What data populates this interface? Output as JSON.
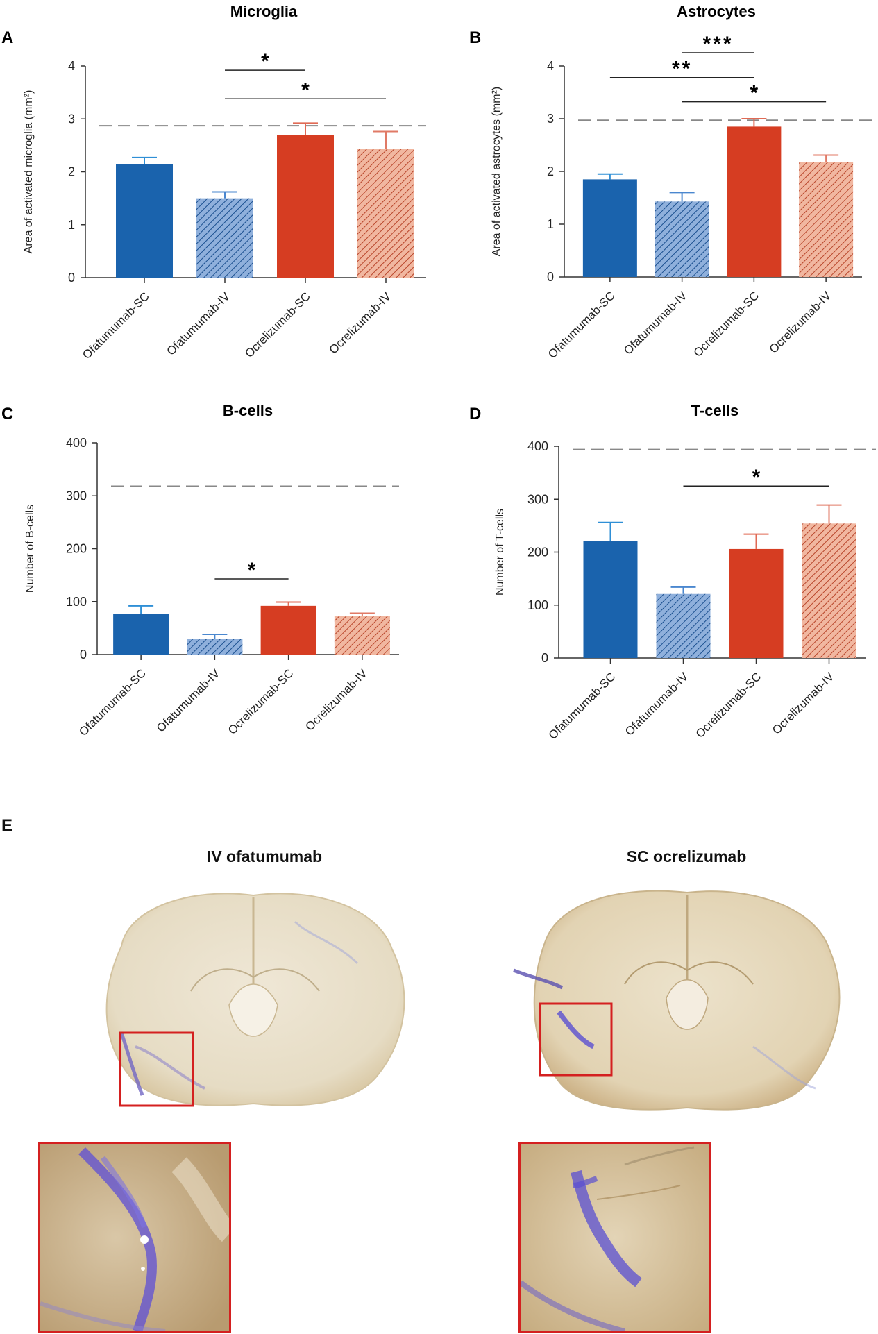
{
  "colors": {
    "ofa": "#1a63ad",
    "ofa_hatch_bg": "#8fb0dc",
    "ocr": "#d63d22",
    "ocr_hatch_bg": "#f1b7a0",
    "reference_line": "#888888",
    "highlight_box": "#d42020"
  },
  "chart_data": [
    {
      "panel": "A",
      "type": "bar",
      "title": "Microglia",
      "ylabel": "Area of activated microglia (mm²)",
      "ylim": [
        0,
        4
      ],
      "yticks": [
        0,
        1,
        2,
        3,
        4
      ],
      "yticks_labels": [
        "0",
        "1",
        "2",
        "3",
        "4"
      ],
      "categories": [
        "Ofatumumab-SC",
        "Ofatumumab-IV",
        "Ocrelizumab-SC",
        "Ocrelizumab-IV"
      ],
      "values": [
        2.15,
        1.5,
        2.7,
        2.43
      ],
      "errors": [
        0.12,
        0.12,
        0.22,
        0.33
      ],
      "reference_value": 2.87,
      "significance": [
        {
          "from": 1,
          "to": 2,
          "level": 3.92,
          "label": "*"
        },
        {
          "from": 1,
          "to": 3,
          "level": 3.38,
          "label": "*"
        }
      ]
    },
    {
      "panel": "B",
      "type": "bar",
      "title": "Astrocytes",
      "ylabel": "Area of activated astrocytes (mm²)",
      "ylim": [
        0,
        4
      ],
      "yticks": [
        0,
        1,
        2,
        3,
        4
      ],
      "yticks_labels": [
        "0",
        "1",
        "2",
        "3",
        "4"
      ],
      "categories": [
        "Ofatumumab-SC",
        "Ofatumumab-IV",
        "Ocrelizumab-SC",
        "Ocrelizumab-IV"
      ],
      "values": [
        1.85,
        1.43,
        2.85,
        2.18
      ],
      "errors": [
        0.1,
        0.17,
        0.15,
        0.13
      ],
      "reference_value": 2.97,
      "significance": [
        {
          "from": 1,
          "to": 2,
          "level": 4.25,
          "label": "***"
        },
        {
          "from": 0,
          "to": 2,
          "level": 3.78,
          "label": "**"
        },
        {
          "from": 1,
          "to": 3,
          "level": 3.32,
          "label": "*"
        }
      ]
    },
    {
      "panel": "C",
      "type": "bar",
      "title": "B-cells",
      "ylabel": "Number of B-cells",
      "ylim": [
        0,
        400
      ],
      "yticks": [
        0,
        100,
        200,
        300,
        400
      ],
      "yticks_labels": [
        "0",
        "100",
        "200",
        "300",
        "400"
      ],
      "categories": [
        "Ofatumumab-SC",
        "Ofatumumab-IV",
        "Ocrelizumab-SC",
        "Ocrelizumab-IV"
      ],
      "values": [
        77,
        30,
        92,
        73
      ],
      "errors": [
        15,
        8,
        7,
        5
      ],
      "reference_value": 318,
      "significance": [
        {
          "from": 1,
          "to": 2,
          "level": 143,
          "label": "*"
        }
      ]
    },
    {
      "panel": "D",
      "type": "bar",
      "title": "T-cells",
      "ylabel": "Number of T-cells",
      "ylim": [
        0,
        400
      ],
      "yticks": [
        0,
        100,
        200,
        300,
        400
      ],
      "yticks_labels": [
        "0",
        "100",
        "200",
        "300",
        "400"
      ],
      "categories": [
        "Ofatumumab-SC",
        "Ofatumumab-IV",
        "Ocrelizumab-SC",
        "Ocrelizumab-IV"
      ],
      "values": [
        221,
        121,
        206,
        254
      ],
      "errors": [
        35,
        13,
        28,
        35
      ],
      "reference_value": 394,
      "significance": [
        {
          "from": 1,
          "to": 3,
          "level": 325,
          "label": "*"
        }
      ]
    }
  ],
  "panel_e": {
    "letter": "E",
    "left_title": "IV ofatumumab",
    "right_title": "SC ocrelizumab"
  }
}
